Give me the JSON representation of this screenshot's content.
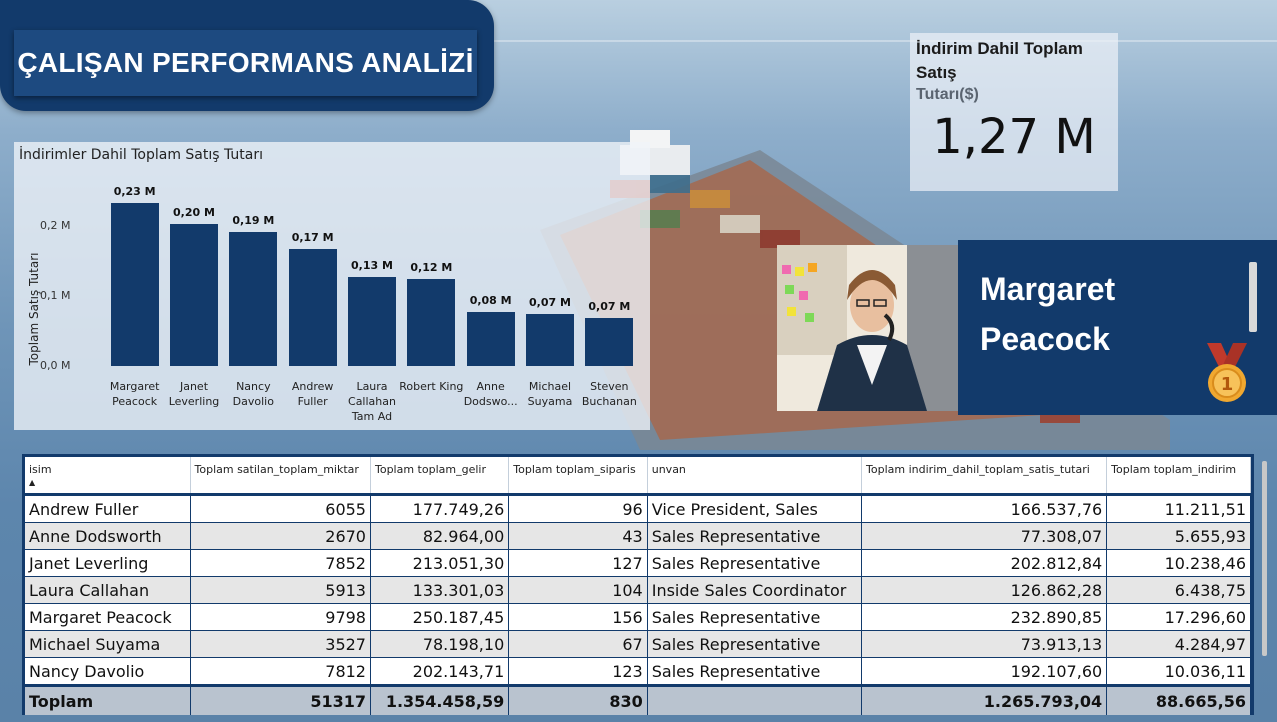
{
  "header": {
    "title": "ÇALIŞAN PERFORMANS ANALİZİ"
  },
  "kpi": {
    "label_line1": "İndirim Dahil Toplam Satış",
    "label_line2": "Tutarı($)",
    "value": "1,27 M"
  },
  "featured_employee": {
    "name_line1": "Margaret",
    "name_line2": "Peacock",
    "rank": "1"
  },
  "chart_data": {
    "type": "bar",
    "title": "İndirimler Dahil Toplam Satış Tutarı",
    "ylabel": "Toplam Satış Tutarı",
    "xlabel": "",
    "ylim": [
      0,
      0.25
    ],
    "yticks": [
      "0,0 M",
      "0,1 M",
      "0,2 M"
    ],
    "categories": [
      "Margaret Peacock",
      "Janet Leverling",
      "Nancy Davolio",
      "Andrew Fuller",
      "Laura Callahan Tam Ad",
      "Robert King",
      "Anne Dodswo...",
      "Michael Suyama",
      "Steven Buchanan"
    ],
    "values": [
      0.233,
      0.203,
      0.192,
      0.167,
      0.127,
      0.124,
      0.077,
      0.074,
      0.069
    ],
    "data_labels": [
      "0,23 M",
      "0,20 M",
      "0,19 M",
      "0,17 M",
      "0,13 M",
      "0,12 M",
      "0,08 M",
      "0,07 M",
      "0,07 M"
    ],
    "bar_color": "#123a6b",
    "grid": false
  },
  "table": {
    "columns": [
      "isim",
      "Toplam satilan_toplam_miktar",
      "Toplam toplam_gelir",
      "Toplam toplam_siparis",
      "unvan",
      "Toplam indirim_dahil_toplam_satis_tutari",
      "Toplam toplam_indirim"
    ],
    "rows": [
      [
        "Andrew Fuller",
        "6055",
        "177.749,26",
        "96",
        "Vice President, Sales",
        "166.537,76",
        "11.211,51"
      ],
      [
        "Anne Dodsworth",
        "2670",
        "82.964,00",
        "43",
        "Sales Representative",
        "77.308,07",
        "5.655,93"
      ],
      [
        "Janet Leverling",
        "7852",
        "213.051,30",
        "127",
        "Sales Representative",
        "202.812,84",
        "10.238,46"
      ],
      [
        "Laura Callahan",
        "5913",
        "133.301,03",
        "104",
        "Inside Sales Coordinator",
        "126.862,28",
        "6.438,75"
      ],
      [
        "Margaret Peacock",
        "9798",
        "250.187,45",
        "156",
        "Sales Representative",
        "232.890,85",
        "17.296,60"
      ],
      [
        "Michael Suyama",
        "3527",
        "78.198,10",
        "67",
        "Sales Representative",
        "73.913,13",
        "4.284,97"
      ],
      [
        "Nancy Davolio",
        "7812",
        "202.143,71",
        "123",
        "Sales Representative",
        "192.107,60",
        "10.036,11"
      ]
    ],
    "total": [
      "Toplam",
      "51317",
      "1.354.458,59",
      "830",
      "",
      "1.265.793,04",
      "88.665,56"
    ]
  }
}
